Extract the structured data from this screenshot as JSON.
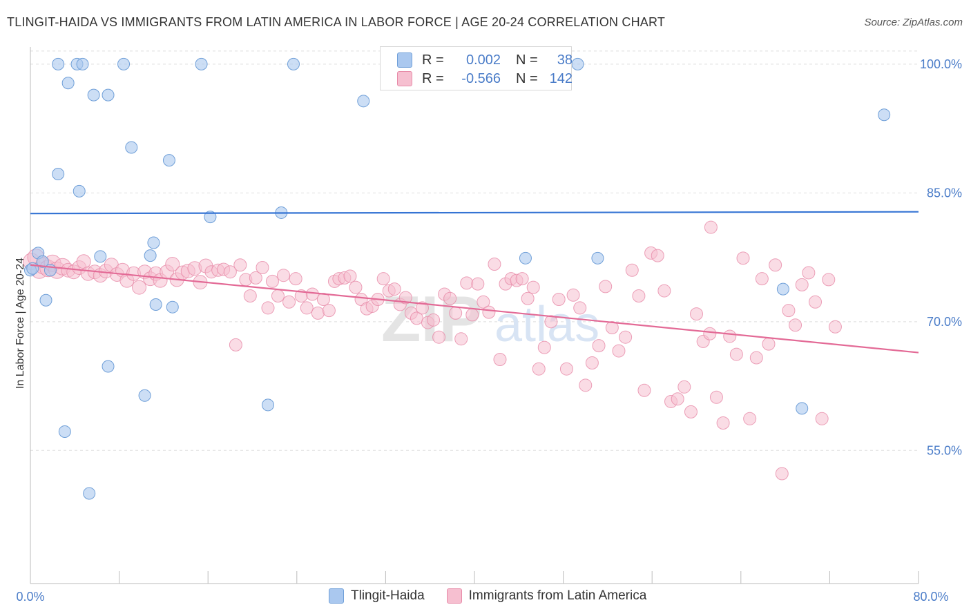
{
  "title": "TLINGIT-HAIDA VS IMMIGRANTS FROM LATIN AMERICA IN LABOR FORCE | AGE 20-24 CORRELATION CHART",
  "source": "Source: ZipAtlas.com",
  "watermark": "ZIPatlas",
  "legend": {
    "rows": [
      {
        "r_label": "R =",
        "r_value": "0.002",
        "n_label": "N =",
        "n_value": "38"
      },
      {
        "r_label": "R =",
        "r_value": "-0.566",
        "n_label": "N =",
        "n_value": "142"
      }
    ]
  },
  "bottom_legend": {
    "series1": "Tlingit-Haida",
    "series2": "Immigrants from Latin America"
  },
  "colors": {
    "blue_fill": "#aac8ef",
    "blue_stroke": "#6f9fd8",
    "blue_line": "#3574d4",
    "pink_fill": "#f6bfd0",
    "pink_stroke": "#e78aa8",
    "pink_line": "#e36a96",
    "axis_label": "#4a7cc8",
    "grid": "#dddddd"
  },
  "chart_data": {
    "type": "scatter",
    "title": "TLINGIT-HAIDA VS IMMIGRANTS FROM LATIN AMERICA IN LABOR FORCE | AGE 20-24 CORRELATION CHART",
    "xlabel": "",
    "ylabel": "In Labor Force | Age 20-24",
    "xlim": [
      0,
      80
    ],
    "ylim": [
      39.5,
      102
    ],
    "x_tick_labels": [
      "0.0%",
      "80.0%"
    ],
    "y_ticks": [
      55,
      70,
      85,
      100
    ],
    "y_tick_labels": [
      "55.0%",
      "70.0%",
      "85.0%",
      "100.0%"
    ],
    "grid": true,
    "legend_position": "top-center",
    "series": [
      {
        "name": "Tlingit-Haida",
        "color": "#aac8ef",
        "r": 0.002,
        "n": 38,
        "trend": {
          "x": [
            0,
            80
          ],
          "y": [
            82.6,
            82.8
          ]
        },
        "points": [
          [
            0.0,
            76.0
          ],
          [
            0.7,
            78.0
          ],
          [
            1.1,
            77.0
          ],
          [
            1.4,
            72.5
          ],
          [
            1.8,
            76.0
          ],
          [
            2.5,
            87.2
          ],
          [
            2.5,
            100.0
          ],
          [
            3.1,
            57.2
          ],
          [
            3.4,
            97.8
          ],
          [
            4.2,
            100.0
          ],
          [
            4.4,
            85.2
          ],
          [
            4.7,
            100.0
          ],
          [
            5.3,
            50.0
          ],
          [
            5.7,
            96.4
          ],
          [
            6.3,
            77.6
          ],
          [
            7.0,
            96.4
          ],
          [
            7.0,
            64.8
          ],
          [
            8.4,
            100.0
          ],
          [
            9.1,
            90.3
          ],
          [
            10.3,
            61.4
          ],
          [
            10.8,
            77.7
          ],
          [
            11.1,
            79.2
          ],
          [
            11.3,
            72.0
          ],
          [
            12.5,
            88.8
          ],
          [
            12.8,
            71.7
          ],
          [
            15.4,
            100.0
          ],
          [
            16.2,
            82.2
          ],
          [
            21.4,
            60.3
          ],
          [
            22.6,
            82.7
          ],
          [
            23.7,
            100.0
          ],
          [
            30.0,
            95.7
          ],
          [
            44.6,
            77.4
          ],
          [
            49.3,
            100.0
          ],
          [
            51.1,
            77.4
          ],
          [
            67.8,
            73.8
          ],
          [
            69.5,
            59.9
          ],
          [
            76.9,
            94.1
          ],
          [
            0.2,
            76.2
          ]
        ]
      },
      {
        "name": "Immigrants from Latin America",
        "color": "#f6bfd0",
        "r": -0.566,
        "n": 142,
        "trend": {
          "x": [
            0,
            80
          ],
          "y": [
            76.6,
            66.4
          ]
        },
        "points": [
          [
            0.1,
            77.0
          ],
          [
            0.5,
            77.5
          ],
          [
            0.8,
            76.0
          ],
          [
            1.2,
            76.5
          ],
          [
            1.6,
            76.2
          ],
          [
            2.0,
            76.8
          ],
          [
            2.4,
            76.0
          ],
          [
            2.9,
            76.4
          ],
          [
            3.4,
            76.0
          ],
          [
            3.9,
            75.8
          ],
          [
            4.4,
            76.3
          ],
          [
            4.8,
            77.0
          ],
          [
            5.2,
            75.6
          ],
          [
            5.8,
            75.8
          ],
          [
            6.3,
            75.4
          ],
          [
            6.8,
            75.9
          ],
          [
            7.3,
            76.6
          ],
          [
            7.8,
            75.5
          ],
          [
            8.3,
            76.0
          ],
          [
            8.7,
            74.8
          ],
          [
            9.3,
            75.6
          ],
          [
            9.8,
            74.0
          ],
          [
            10.3,
            75.8
          ],
          [
            10.8,
            75.0
          ],
          [
            11.3,
            75.6
          ],
          [
            11.7,
            74.8
          ],
          [
            12.3,
            75.8
          ],
          [
            12.8,
            76.7
          ],
          [
            13.2,
            74.9
          ],
          [
            13.7,
            75.7
          ],
          [
            14.2,
            75.9
          ],
          [
            14.8,
            76.2
          ],
          [
            15.3,
            74.6
          ],
          [
            15.8,
            76.5
          ],
          [
            16.3,
            75.8
          ],
          [
            16.9,
            76.0
          ],
          [
            17.4,
            76.1
          ],
          [
            18.0,
            75.8
          ],
          [
            18.5,
            67.3
          ],
          [
            18.9,
            76.6
          ],
          [
            19.4,
            74.9
          ],
          [
            19.8,
            73.0
          ],
          [
            20.3,
            75.1
          ],
          [
            20.9,
            76.3
          ],
          [
            21.4,
            71.6
          ],
          [
            21.8,
            74.7
          ],
          [
            22.3,
            73.0
          ],
          [
            22.8,
            75.4
          ],
          [
            23.3,
            72.3
          ],
          [
            23.9,
            75.0
          ],
          [
            24.4,
            73.0
          ],
          [
            24.9,
            71.6
          ],
          [
            25.4,
            73.2
          ],
          [
            25.9,
            71.0
          ],
          [
            26.4,
            72.6
          ],
          [
            26.9,
            71.3
          ],
          [
            27.4,
            74.7
          ],
          [
            27.8,
            75.0
          ],
          [
            28.3,
            75.1
          ],
          [
            28.8,
            75.3
          ],
          [
            29.3,
            74.0
          ],
          [
            29.8,
            72.6
          ],
          [
            30.3,
            71.5
          ],
          [
            30.8,
            71.8
          ],
          [
            31.3,
            72.6
          ],
          [
            31.8,
            75.0
          ],
          [
            32.3,
            73.6
          ],
          [
            32.8,
            73.8
          ],
          [
            33.3,
            72.0
          ],
          [
            33.8,
            72.8
          ],
          [
            34.3,
            71.0
          ],
          [
            34.8,
            70.4
          ],
          [
            35.3,
            71.6
          ],
          [
            35.8,
            69.9
          ],
          [
            36.3,
            70.2
          ],
          [
            36.8,
            68.2
          ],
          [
            37.3,
            73.2
          ],
          [
            37.8,
            72.7
          ],
          [
            38.3,
            71.0
          ],
          [
            38.8,
            68.0
          ],
          [
            39.3,
            74.5
          ],
          [
            39.8,
            70.8
          ],
          [
            40.3,
            74.4
          ],
          [
            40.8,
            72.3
          ],
          [
            41.3,
            71.1
          ],
          [
            41.8,
            76.7
          ],
          [
            42.3,
            65.6
          ],
          [
            42.8,
            74.4
          ],
          [
            43.3,
            75.0
          ],
          [
            43.8,
            74.8
          ],
          [
            44.3,
            75.0
          ],
          [
            44.8,
            72.7
          ],
          [
            45.3,
            74.0
          ],
          [
            45.8,
            64.5
          ],
          [
            46.3,
            67.0
          ],
          [
            46.9,
            70.0
          ],
          [
            47.6,
            72.6
          ],
          [
            48.3,
            64.5
          ],
          [
            48.9,
            73.1
          ],
          [
            49.5,
            71.6
          ],
          [
            50.0,
            62.6
          ],
          [
            50.6,
            65.2
          ],
          [
            51.2,
            67.2
          ],
          [
            51.8,
            74.1
          ],
          [
            52.4,
            69.3
          ],
          [
            53.0,
            66.6
          ],
          [
            53.6,
            68.2
          ],
          [
            54.2,
            76.0
          ],
          [
            54.8,
            73.0
          ],
          [
            55.3,
            62.0
          ],
          [
            55.9,
            78.0
          ],
          [
            56.5,
            77.7
          ],
          [
            57.1,
            73.6
          ],
          [
            57.7,
            60.7
          ],
          [
            58.3,
            61.0
          ],
          [
            58.9,
            62.4
          ],
          [
            59.5,
            59.5
          ],
          [
            60.0,
            70.9
          ],
          [
            60.6,
            67.7
          ],
          [
            61.2,
            68.6
          ],
          [
            61.8,
            61.2
          ],
          [
            62.4,
            58.2
          ],
          [
            63.0,
            68.3
          ],
          [
            63.6,
            66.2
          ],
          [
            64.2,
            77.4
          ],
          [
            64.8,
            58.7
          ],
          [
            65.4,
            65.8
          ],
          [
            65.9,
            75.0
          ],
          [
            66.5,
            67.4
          ],
          [
            67.1,
            76.6
          ],
          [
            67.7,
            52.3
          ],
          [
            68.3,
            71.3
          ],
          [
            68.9,
            69.6
          ],
          [
            69.5,
            74.3
          ],
          [
            70.1,
            75.7
          ],
          [
            70.7,
            72.3
          ],
          [
            71.3,
            58.7
          ],
          [
            71.9,
            74.9
          ],
          [
            72.5,
            69.4
          ],
          [
            61.3,
            81.0
          ]
        ]
      }
    ]
  }
}
